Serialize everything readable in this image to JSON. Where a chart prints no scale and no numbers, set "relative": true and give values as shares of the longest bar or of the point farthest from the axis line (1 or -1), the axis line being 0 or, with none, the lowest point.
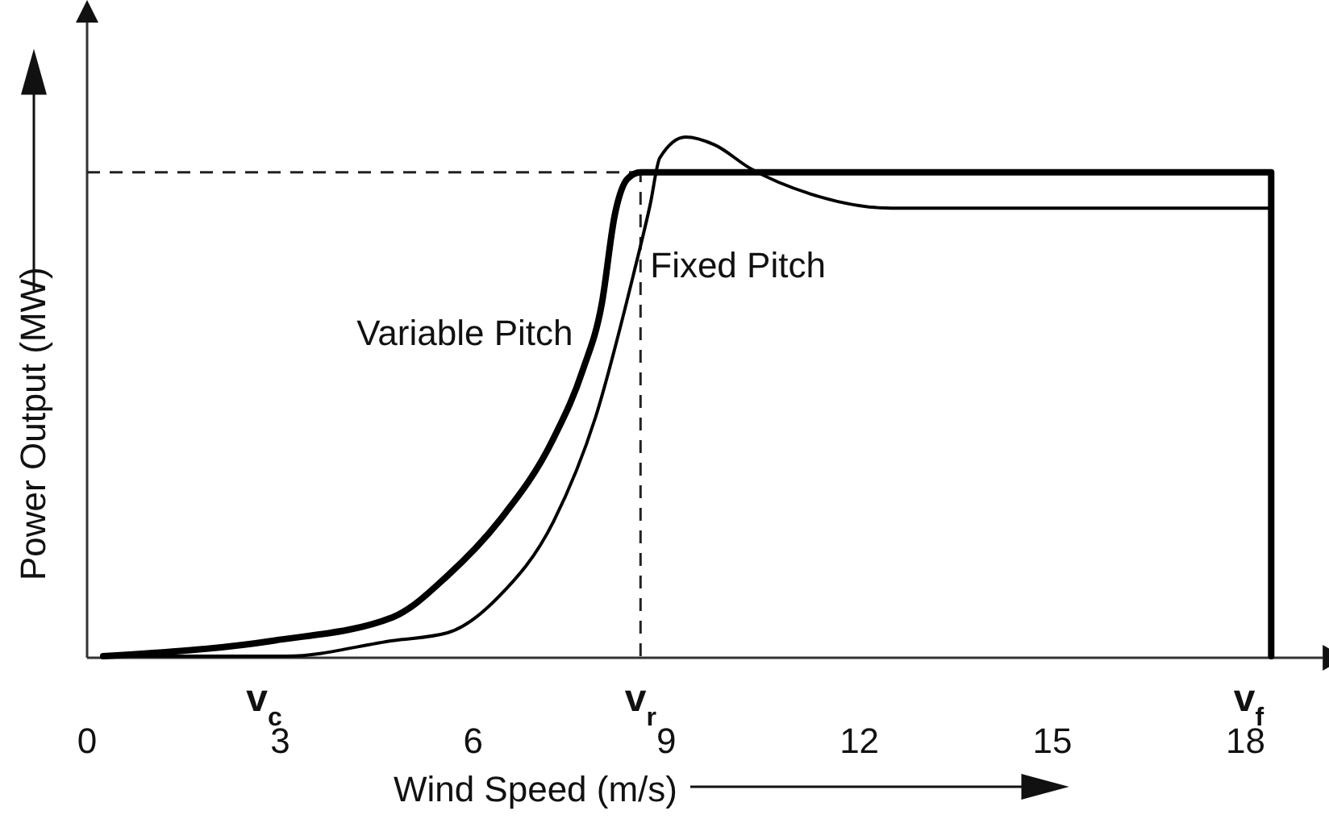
{
  "chart_data": {
    "type": "line",
    "relative": true,
    "xlabel": "Wind Speed (m/s)",
    "ylabel": "Power Output (MW)",
    "xlim": [
      0,
      19.2
    ],
    "xticks": [
      0,
      3,
      6,
      9,
      12,
      15,
      18
    ],
    "line_style": "solid",
    "marker": "none",
    "grid": false,
    "legend": false,
    "series": [
      {
        "name": "Variable Pitch",
        "color": "#000000",
        "x": [
          0.25,
          2.9,
          4.75,
          5.6,
          6.4,
          7.25,
          7.7,
          8.0,
          8.2,
          8.4,
          8.6,
          18.4,
          18.4
        ],
        "values": [
          0,
          0.03,
          0.075,
          0.155,
          0.26,
          0.42,
          0.55,
          0.68,
          0.85,
          0.92,
          0.932,
          0.932,
          0
        ]
      },
      {
        "name": "Fixed Pitch",
        "color": "#000000",
        "x": [
          0.25,
          3.1,
          4.75,
          5.6,
          6.4,
          7.25,
          7.9,
          8.5,
          8.75,
          8.9,
          9.3,
          9.75,
          10.3,
          11.25,
          12.5,
          18.4
        ],
        "values": [
          0,
          0,
          0.03,
          0.045,
          0.115,
          0.26,
          0.46,
          0.74,
          0.87,
          0.96,
          1,
          0.985,
          0.94,
          0.89,
          0.863,
          0.863
        ]
      }
    ],
    "ref_lines": [
      {
        "axis": "y",
        "value": 0.932,
        "line_style": "dashed"
      },
      {
        "axis": "x",
        "value": 8.6,
        "line_style": "dashed",
        "label": "v$_{r}$"
      }
    ],
    "annotations": [
      "v$_{c}$",
      "v$_{f}$"
    ]
  }
}
